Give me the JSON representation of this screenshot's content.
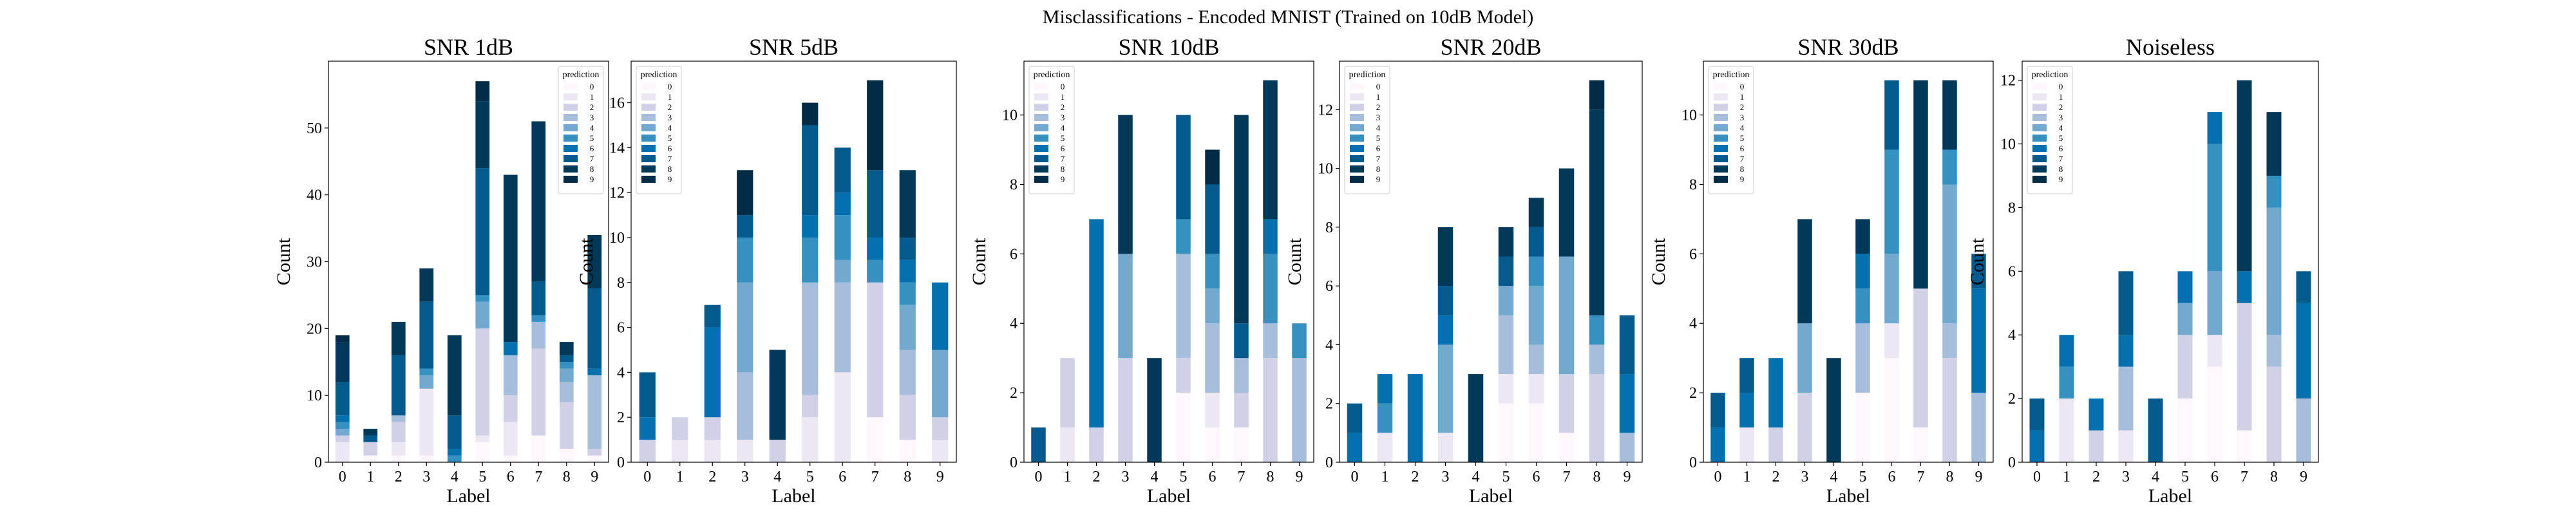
{
  "figure": {
    "title": "Misclassifications - Encoded MNIST (Trained on 10dB Model)"
  },
  "palette": [
    "#fff7fb",
    "#ece7f2",
    "#d0d1e6",
    "#a6bddb",
    "#74a9cf",
    "#3690c0",
    "#0570b0",
    "#045a8d",
    "#023858",
    "#012c47"
  ],
  "chart_data": [
    {
      "type": "bar",
      "stacked": true,
      "title": "SNR 1dB",
      "xlabel": "Label",
      "ylabel": "Count",
      "ylim": [
        0,
        60
      ],
      "yticks": [
        0,
        10,
        20,
        30,
        40,
        50
      ],
      "legend": {
        "title": "prediction",
        "position": "upper right"
      },
      "categories": [
        "0",
        "1",
        "2",
        "3",
        "4",
        "5",
        "6",
        "7",
        "8",
        "9"
      ],
      "series": [
        {
          "name": "0",
          "values": [
            0,
            1,
            1,
            1,
            0,
            3,
            1,
            4,
            2,
            1
          ]
        },
        {
          "name": "1",
          "values": [
            3,
            0,
            2,
            10,
            0,
            1,
            5,
            0,
            0,
            0
          ]
        },
        {
          "name": "2",
          "values": [
            1,
            2,
            3,
            0,
            0,
            16,
            4,
            13,
            7,
            1
          ]
        },
        {
          "name": "3",
          "values": [
            0,
            0,
            1,
            0,
            0,
            0,
            6,
            4,
            3,
            11
          ]
        },
        {
          "name": "4",
          "values": [
            1,
            0,
            0,
            2,
            0,
            4,
            0,
            0,
            2,
            0
          ]
        },
        {
          "name": "5",
          "values": [
            1,
            0,
            0,
            1,
            1,
            1,
            0,
            1,
            1,
            0
          ]
        },
        {
          "name": "6",
          "values": [
            1,
            0,
            0,
            0,
            1,
            0,
            2,
            0,
            0,
            1
          ]
        },
        {
          "name": "7",
          "values": [
            5,
            1,
            9,
            10,
            5,
            19,
            0,
            5,
            1,
            12
          ]
        },
        {
          "name": "8",
          "values": [
            6,
            1,
            5,
            5,
            12,
            10,
            25,
            24,
            2,
            8
          ]
        },
        {
          "name": "9",
          "values": [
            1,
            0,
            0,
            0,
            0,
            3,
            0,
            0,
            0,
            0
          ]
        }
      ]
    },
    {
      "type": "bar",
      "stacked": true,
      "title": "SNR 5dB",
      "xlabel": "Label",
      "ylabel": "Count",
      "ylim": [
        0,
        17.85
      ],
      "yticks": [
        0,
        2,
        4,
        6,
        8,
        10,
        12,
        14,
        16
      ],
      "legend": {
        "title": "prediction",
        "position": "upper left"
      },
      "categories": [
        "0",
        "1",
        "2",
        "3",
        "4",
        "5",
        "6",
        "7",
        "8",
        "9"
      ],
      "series": [
        {
          "name": "0",
          "values": [
            0,
            0,
            0,
            0,
            0,
            0,
            0,
            2,
            1,
            0
          ]
        },
        {
          "name": "1",
          "values": [
            0,
            1,
            1,
            1,
            0,
            2,
            4,
            0,
            0,
            1
          ]
        },
        {
          "name": "2",
          "values": [
            1,
            1,
            1,
            0,
            1,
            1,
            0,
            6,
            2,
            1
          ]
        },
        {
          "name": "3",
          "values": [
            0,
            0,
            0,
            3,
            0,
            5,
            4,
            0,
            2,
            0
          ]
        },
        {
          "name": "4",
          "values": [
            0,
            0,
            0,
            4,
            0,
            0,
            1,
            0,
            2,
            3
          ]
        },
        {
          "name": "5",
          "values": [
            0,
            0,
            0,
            2,
            0,
            2,
            2,
            1,
            1,
            0
          ]
        },
        {
          "name": "6",
          "values": [
            1,
            0,
            4,
            0,
            0,
            1,
            1,
            1,
            1,
            3
          ]
        },
        {
          "name": "7",
          "values": [
            2,
            0,
            1,
            1,
            0,
            4,
            2,
            3,
            1,
            0
          ]
        },
        {
          "name": "8",
          "values": [
            0,
            0,
            0,
            0,
            4,
            0,
            0,
            0,
            3,
            0
          ]
        },
        {
          "name": "9",
          "values": [
            0,
            0,
            0,
            2,
            0,
            1,
            0,
            4,
            0,
            0
          ]
        }
      ]
    },
    {
      "type": "bar",
      "stacked": true,
      "title": "SNR 10dB",
      "xlabel": "Label",
      "ylabel": "Count",
      "ylim": [
        0,
        11.55
      ],
      "yticks": [
        0,
        2,
        4,
        6,
        8,
        10
      ],
      "legend": {
        "title": "prediction",
        "position": "upper left"
      },
      "categories": [
        "0",
        "1",
        "2",
        "3",
        "4",
        "5",
        "6",
        "7",
        "8",
        "9"
      ],
      "series": [
        {
          "name": "0",
          "values": [
            0,
            0,
            0,
            0,
            0,
            2,
            1,
            1,
            0,
            0
          ]
        },
        {
          "name": "1",
          "values": [
            0,
            1,
            0,
            0,
            0,
            0,
            1,
            0,
            0,
            0
          ]
        },
        {
          "name": "2",
          "values": [
            0,
            2,
            1,
            3,
            0,
            1,
            0,
            1,
            3,
            0
          ]
        },
        {
          "name": "3",
          "values": [
            0,
            0,
            0,
            0,
            0,
            3,
            2,
            1,
            1,
            3
          ]
        },
        {
          "name": "4",
          "values": [
            0,
            0,
            0,
            3,
            0,
            0,
            1,
            0,
            0,
            0
          ]
        },
        {
          "name": "5",
          "values": [
            0,
            0,
            0,
            0,
            0,
            1,
            1,
            0,
            2,
            1
          ]
        },
        {
          "name": "6",
          "values": [
            0,
            0,
            6,
            0,
            0,
            0,
            0,
            0,
            1,
            0
          ]
        },
        {
          "name": "7",
          "values": [
            1,
            0,
            0,
            0,
            0,
            3,
            2,
            1,
            0,
            0
          ]
        },
        {
          "name": "8",
          "values": [
            0,
            0,
            0,
            4,
            3,
            0,
            0,
            6,
            4,
            0
          ]
        },
        {
          "name": "9",
          "values": [
            0,
            0,
            0,
            0,
            0,
            0,
            1,
            0,
            0,
            0
          ]
        }
      ]
    },
    {
      "type": "bar",
      "stacked": true,
      "title": "SNR 20dB",
      "xlabel": "Label",
      "ylabel": "Count",
      "ylim": [
        0,
        13.65
      ],
      "yticks": [
        0,
        2,
        4,
        6,
        8,
        10,
        12
      ],
      "legend": {
        "title": "prediction",
        "position": "upper left"
      },
      "categories": [
        "0",
        "1",
        "2",
        "3",
        "4",
        "5",
        "6",
        "7",
        "8",
        "9"
      ],
      "series": [
        {
          "name": "0",
          "values": [
            0,
            0,
            0,
            0,
            0,
            2,
            2,
            1,
            0,
            0
          ]
        },
        {
          "name": "1",
          "values": [
            0,
            1,
            0,
            1,
            0,
            1,
            1,
            0,
            0,
            0
          ]
        },
        {
          "name": "2",
          "values": [
            0,
            0,
            0,
            0,
            0,
            0,
            0,
            2,
            3,
            0
          ]
        },
        {
          "name": "3",
          "values": [
            0,
            0,
            0,
            0,
            0,
            2,
            1,
            0,
            1,
            1
          ]
        },
        {
          "name": "4",
          "values": [
            0,
            0,
            0,
            3,
            0,
            1,
            2,
            4,
            0,
            0
          ]
        },
        {
          "name": "5",
          "values": [
            0,
            1,
            0,
            0,
            0,
            0,
            1,
            0,
            1,
            0
          ]
        },
        {
          "name": "6",
          "values": [
            1,
            1,
            3,
            1,
            0,
            0,
            0,
            0,
            0,
            2
          ]
        },
        {
          "name": "7",
          "values": [
            1,
            0,
            0,
            1,
            0,
            1,
            1,
            0,
            0,
            2
          ]
        },
        {
          "name": "8",
          "values": [
            0,
            0,
            0,
            2,
            3,
            1,
            1,
            3,
            7,
            0
          ]
        },
        {
          "name": "9",
          "values": [
            0,
            0,
            0,
            0,
            0,
            0,
            0,
            0,
            1,
            0
          ]
        }
      ]
    },
    {
      "type": "bar",
      "stacked": true,
      "title": "SNR 30dB",
      "xlabel": "Label",
      "ylabel": "Count",
      "ylim": [
        0,
        11.55
      ],
      "yticks": [
        0,
        2,
        4,
        6,
        8,
        10
      ],
      "legend": {
        "title": "prediction",
        "position": "upper left"
      },
      "categories": [
        "0",
        "1",
        "2",
        "3",
        "4",
        "5",
        "6",
        "7",
        "8",
        "9"
      ],
      "series": [
        {
          "name": "0",
          "values": [
            0,
            0,
            0,
            0,
            0,
            2,
            3,
            1,
            0,
            0
          ]
        },
        {
          "name": "1",
          "values": [
            0,
            1,
            0,
            0,
            0,
            0,
            1,
            0,
            0,
            0
          ]
        },
        {
          "name": "2",
          "values": [
            0,
            0,
            1,
            2,
            0,
            0,
            0,
            4,
            3,
            0
          ]
        },
        {
          "name": "3",
          "values": [
            0,
            0,
            0,
            0,
            0,
            2,
            0,
            0,
            1,
            2
          ]
        },
        {
          "name": "4",
          "values": [
            0,
            0,
            0,
            2,
            0,
            0,
            2,
            0,
            4,
            0
          ]
        },
        {
          "name": "5",
          "values": [
            0,
            0,
            0,
            0,
            0,
            1,
            3,
            0,
            1,
            0
          ]
        },
        {
          "name": "6",
          "values": [
            1,
            1,
            2,
            0,
            0,
            1,
            0,
            0,
            0,
            3
          ]
        },
        {
          "name": "7",
          "values": [
            1,
            1,
            0,
            0,
            0,
            0,
            2,
            0,
            0,
            1
          ]
        },
        {
          "name": "8",
          "values": [
            0,
            0,
            0,
            3,
            3,
            1,
            0,
            6,
            2,
            0
          ]
        },
        {
          "name": "9",
          "values": [
            0,
            0,
            0,
            0,
            0,
            0,
            0,
            0,
            0,
            0
          ]
        }
      ]
    },
    {
      "type": "bar",
      "stacked": true,
      "title": "Noiseless",
      "xlabel": "Label",
      "ylabel": "Count",
      "ylim": [
        0,
        12.6
      ],
      "yticks": [
        0,
        2,
        4,
        6,
        8,
        10,
        12
      ],
      "legend": {
        "title": "prediction",
        "position": "upper left"
      },
      "categories": [
        "0",
        "1",
        "2",
        "3",
        "4",
        "5",
        "6",
        "7",
        "8",
        "9"
      ],
      "series": [
        {
          "name": "0",
          "values": [
            0,
            0,
            0,
            0,
            0,
            2,
            3,
            1,
            0,
            0
          ]
        },
        {
          "name": "1",
          "values": [
            0,
            2,
            0,
            1,
            0,
            0,
            1,
            0,
            0,
            0
          ]
        },
        {
          "name": "2",
          "values": [
            0,
            0,
            1,
            0,
            0,
            2,
            0,
            4,
            3,
            0
          ]
        },
        {
          "name": "3",
          "values": [
            0,
            0,
            0,
            2,
            0,
            0,
            0,
            0,
            1,
            2
          ]
        },
        {
          "name": "4",
          "values": [
            0,
            0,
            0,
            0,
            0,
            1,
            2,
            0,
            4,
            0
          ]
        },
        {
          "name": "5",
          "values": [
            0,
            1,
            0,
            0,
            0,
            0,
            4,
            0,
            1,
            0
          ]
        },
        {
          "name": "6",
          "values": [
            1,
            1,
            1,
            1,
            0,
            1,
            1,
            1,
            0,
            3
          ]
        },
        {
          "name": "7",
          "values": [
            1,
            0,
            0,
            2,
            2,
            0,
            0,
            0,
            0,
            1
          ]
        },
        {
          "name": "8",
          "values": [
            0,
            0,
            0,
            0,
            0,
            0,
            0,
            6,
            2,
            0
          ]
        },
        {
          "name": "9",
          "values": [
            0,
            0,
            0,
            0,
            0,
            0,
            0,
            0,
            0,
            0
          ]
        }
      ]
    }
  ]
}
